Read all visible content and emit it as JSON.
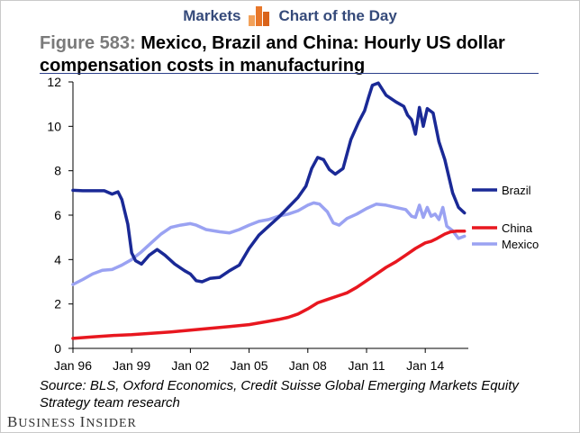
{
  "header": {
    "left": "Markets",
    "right": "Chart of the Day",
    "icon": "bar-chart-icon",
    "icon_colors": [
      "#f2a15a",
      "#e8772a",
      "#d9631a"
    ]
  },
  "title": {
    "figure": "Figure 583:",
    "text": "Mexico, Brazil and China: Hourly US dollar compensation costs in manufacturing"
  },
  "source": "Source: BLS, Oxford Economics, Credit Suisse Global Emerging Markets Equity Strategy team research",
  "brand": "Business Insider",
  "chart_data": {
    "type": "line",
    "ylim": [
      0,
      12
    ],
    "yticks": [
      0,
      2,
      4,
      6,
      8,
      10,
      12
    ],
    "xlim": [
      1996.0,
      2016.2
    ],
    "xticks": [
      {
        "label": "Jan 96",
        "value": 1996
      },
      {
        "label": "Jan 99",
        "value": 1999
      },
      {
        "label": "Jan 02",
        "value": 2002
      },
      {
        "label": "Jan 05",
        "value": 2005
      },
      {
        "label": "Jan 08",
        "value": 2008
      },
      {
        "label": "Jan 11",
        "value": 2011
      },
      {
        "label": "Jan 14",
        "value": 2014
      }
    ],
    "grid": false,
    "legend": "right",
    "series": [
      {
        "name": "Brazil",
        "color": "#1a2996",
        "x": [
          1996.0,
          1996.5,
          1997.0,
          1997.3,
          1997.6,
          1998.0,
          1998.3,
          1998.5,
          1998.8,
          1999.0,
          1999.2,
          1999.5,
          1999.9,
          2000.3,
          2000.7,
          2001.2,
          2001.7,
          2002.0,
          2002.3,
          2002.6,
          2003.0,
          2003.5,
          2004.0,
          2004.5,
          2005.0,
          2005.5,
          2006.0,
          2006.5,
          2007.0,
          2007.5,
          2007.9,
          2008.2,
          2008.5,
          2008.8,
          2009.1,
          2009.4,
          2009.8,
          2010.2,
          2010.6,
          2010.9,
          2011.1,
          2011.3,
          2011.6,
          2012.0,
          2012.5,
          2012.9,
          2013.1,
          2013.3,
          2013.5,
          2013.7,
          2013.9,
          2014.1,
          2014.4,
          2014.7,
          2015.0,
          2015.4,
          2015.7,
          2016.0
        ],
        "y": [
          7.12,
          7.1,
          7.1,
          7.1,
          7.1,
          6.95,
          7.05,
          6.7,
          5.6,
          4.3,
          3.95,
          3.8,
          4.2,
          4.45,
          4.2,
          3.8,
          3.5,
          3.35,
          3.05,
          3.0,
          3.15,
          3.2,
          3.5,
          3.75,
          4.5,
          5.1,
          5.5,
          5.9,
          6.35,
          6.8,
          7.3,
          8.1,
          8.6,
          8.5,
          8.05,
          7.85,
          8.1,
          9.4,
          10.2,
          10.7,
          11.3,
          11.85,
          11.95,
          11.4,
          11.1,
          10.9,
          10.5,
          10.3,
          9.65,
          10.85,
          10.0,
          10.8,
          10.6,
          9.3,
          8.5,
          7.0,
          6.35,
          6.1
        ]
      },
      {
        "name": "China",
        "color": "#e8171f",
        "x": [
          1996.0,
          1997.0,
          1998.0,
          1999.0,
          2000.0,
          2001.0,
          2002.0,
          2003.0,
          2004.0,
          2005.0,
          2006.0,
          2006.5,
          2007.0,
          2007.5,
          2008.0,
          2008.5,
          2009.0,
          2009.5,
          2010.0,
          2010.5,
          2011.0,
          2011.5,
          2012.0,
          2012.5,
          2013.0,
          2013.5,
          2014.0,
          2014.3,
          2014.6,
          2015.0,
          2015.3,
          2015.6,
          2016.0
        ],
        "y": [
          0.45,
          0.52,
          0.58,
          0.62,
          0.68,
          0.74,
          0.82,
          0.9,
          0.98,
          1.07,
          1.22,
          1.3,
          1.4,
          1.55,
          1.78,
          2.05,
          2.2,
          2.35,
          2.5,
          2.75,
          3.05,
          3.35,
          3.65,
          3.9,
          4.2,
          4.5,
          4.75,
          4.82,
          4.95,
          5.15,
          5.25,
          5.28,
          5.28
        ]
      },
      {
        "name": "Mexico",
        "color": "#9aa2f2",
        "x": [
          1996.0,
          1996.5,
          1997.0,
          1997.5,
          1998.0,
          1998.5,
          1999.0,
          1999.5,
          2000.0,
          2000.5,
          2001.0,
          2001.5,
          2002.0,
          2002.3,
          2002.8,
          2003.5,
          2004.0,
          2004.5,
          2005.0,
          2005.5,
          2006.0,
          2006.5,
          2007.0,
          2007.5,
          2008.0,
          2008.3,
          2008.6,
          2009.0,
          2009.3,
          2009.6,
          2010.0,
          2010.5,
          2011.0,
          2011.5,
          2012.0,
          2012.5,
          2013.0,
          2013.3,
          2013.5,
          2013.7,
          2013.9,
          2014.1,
          2014.3,
          2014.5,
          2014.7,
          2014.9,
          2015.1,
          2015.4,
          2015.7,
          2016.0
        ],
        "y": [
          2.88,
          3.1,
          3.35,
          3.52,
          3.55,
          3.75,
          4.0,
          4.35,
          4.75,
          5.15,
          5.45,
          5.55,
          5.62,
          5.55,
          5.35,
          5.25,
          5.2,
          5.35,
          5.55,
          5.72,
          5.8,
          5.95,
          6.05,
          6.2,
          6.45,
          6.55,
          6.5,
          6.15,
          5.65,
          5.55,
          5.85,
          6.05,
          6.3,
          6.5,
          6.45,
          6.35,
          6.25,
          5.95,
          5.9,
          6.45,
          5.9,
          6.35,
          5.95,
          6.05,
          5.8,
          6.35,
          5.5,
          5.3,
          4.95,
          5.05
        ]
      }
    ]
  }
}
